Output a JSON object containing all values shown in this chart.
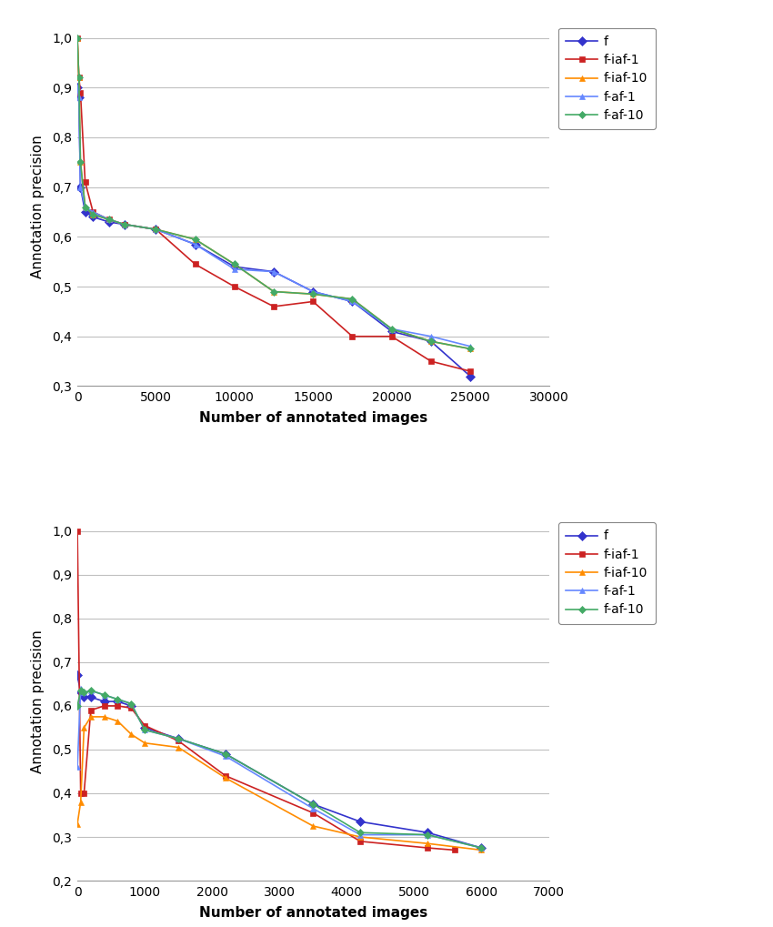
{
  "face": {
    "series": {
      "f": {
        "x": [
          1,
          100,
          200,
          500,
          1000,
          2000,
          3000,
          5000,
          7500,
          10000,
          12500,
          15000,
          17500,
          20000,
          22500,
          25000
        ],
        "y": [
          0.9,
          0.88,
          0.7,
          0.65,
          0.64,
          0.63,
          0.625,
          0.615,
          0.585,
          0.54,
          0.53,
          0.49,
          0.47,
          0.41,
          0.39,
          0.32
        ],
        "color": "#3333CC",
        "marker": "D",
        "markersize": 5,
        "label": "f"
      },
      "f-iaf-1": {
        "x": [
          1,
          100,
          200,
          500,
          1000,
          2000,
          3000,
          5000,
          7500,
          10000,
          12500,
          15000,
          17500,
          20000,
          22500,
          25000
        ],
        "y": [
          1.0,
          0.92,
          0.89,
          0.71,
          0.65,
          0.635,
          0.625,
          0.615,
          0.545,
          0.5,
          0.46,
          0.47,
          0.4,
          0.4,
          0.35,
          0.33
        ],
        "color": "#CC2222",
        "marker": "s",
        "markersize": 5,
        "label": "f-iaf-1"
      },
      "f-iaf-10": {
        "x": [
          1,
          100,
          200,
          500,
          1000,
          2000,
          3000,
          5000,
          7500,
          10000,
          12500,
          15000,
          17500,
          20000,
          22500,
          25000
        ],
        "y": [
          1.0,
          0.92,
          0.75,
          0.66,
          0.645,
          0.635,
          0.625,
          0.615,
          0.595,
          0.545,
          0.49,
          0.485,
          0.475,
          0.415,
          0.39,
          0.375
        ],
        "color": "#FF8C00",
        "marker": "^",
        "markersize": 5,
        "label": "f-iaf-10"
      },
      "f-af-1": {
        "x": [
          1,
          100,
          200,
          500,
          1000,
          2000,
          3000,
          5000,
          7500,
          10000,
          12500,
          15000,
          17500,
          20000,
          22500,
          25000
        ],
        "y": [
          0.9,
          0.88,
          0.7,
          0.66,
          0.65,
          0.635,
          0.625,
          0.615,
          0.585,
          0.535,
          0.53,
          0.49,
          0.47,
          0.415,
          0.4,
          0.38
        ],
        "color": "#6688FF",
        "marker": "^",
        "markersize": 5,
        "label": "f-af-1"
      },
      "f-af-10": {
        "x": [
          1,
          100,
          200,
          500,
          1000,
          2000,
          3000,
          5000,
          7500,
          10000,
          12500,
          15000,
          17500,
          20000,
          22500,
          25000
        ],
        "y": [
          1.0,
          0.92,
          0.75,
          0.66,
          0.645,
          0.635,
          0.625,
          0.615,
          0.595,
          0.545,
          0.49,
          0.485,
          0.475,
          0.415,
          0.39,
          0.375
        ],
        "color": "#44AA66",
        "marker": "D",
        "markersize": 4,
        "label": "f-af-10"
      }
    },
    "xlim": [
      0,
      30000
    ],
    "ylim": [
      0.3,
      1.02
    ],
    "xticks": [
      0,
      5000,
      10000,
      15000,
      20000,
      25000,
      30000
    ],
    "yticks": [
      0.3,
      0.4,
      0.5,
      0.6,
      0.7,
      0.8,
      0.9,
      1.0
    ],
    "ylabel": "Annotation precision",
    "xlabel": "Number of annotated images"
  },
  "logo": {
    "series": {
      "f": {
        "x": [
          1,
          50,
          100,
          200,
          400,
          600,
          800,
          1000,
          1500,
          2200,
          3500,
          4200,
          5200,
          6000
        ],
        "y": [
          0.67,
          0.63,
          0.62,
          0.62,
          0.61,
          0.61,
          0.6,
          0.55,
          0.525,
          0.49,
          0.375,
          0.335,
          0.31,
          0.275
        ],
        "color": "#3333CC",
        "marker": "D",
        "markersize": 5,
        "label": "f"
      },
      "f-iaf-1": {
        "x": [
          1,
          50,
          100,
          200,
          400,
          600,
          800,
          1000,
          1500,
          2200,
          3500,
          4200,
          5200,
          5600
        ],
        "y": [
          1.0,
          0.4,
          0.4,
          0.59,
          0.6,
          0.6,
          0.595,
          0.555,
          0.52,
          0.44,
          0.355,
          0.29,
          0.275,
          0.27
        ],
        "color": "#CC2222",
        "marker": "s",
        "markersize": 5,
        "label": "f-iaf-1"
      },
      "f-iaf-10": {
        "x": [
          1,
          50,
          100,
          200,
          400,
          600,
          800,
          1000,
          1500,
          2200,
          3500,
          4200,
          5200,
          6000
        ],
        "y": [
          0.33,
          0.38,
          0.55,
          0.575,
          0.575,
          0.565,
          0.535,
          0.515,
          0.505,
          0.435,
          0.325,
          0.3,
          0.285,
          0.27
        ],
        "color": "#FF8C00",
        "marker": "^",
        "markersize": 5,
        "label": "f-iaf-10"
      },
      "f-af-1": {
        "x": [
          1,
          50,
          100,
          200,
          400,
          600,
          800,
          1000,
          1500,
          2200,
          3500,
          4200,
          5200,
          6000
        ],
        "y": [
          0.46,
          0.64,
          0.63,
          0.635,
          0.625,
          0.615,
          0.605,
          0.545,
          0.525,
          0.485,
          0.365,
          0.305,
          0.305,
          0.275
        ],
        "color": "#6688FF",
        "marker": "^",
        "markersize": 5,
        "label": "f-af-1"
      },
      "f-af-10": {
        "x": [
          1,
          50,
          100,
          200,
          400,
          600,
          800,
          1000,
          1500,
          2200,
          3500,
          4200,
          5200,
          6000
        ],
        "y": [
          0.6,
          0.635,
          0.63,
          0.635,
          0.625,
          0.615,
          0.605,
          0.545,
          0.525,
          0.49,
          0.375,
          0.31,
          0.305,
          0.275
        ],
        "color": "#44AA66",
        "marker": "D",
        "markersize": 4,
        "label": "f-af-10"
      }
    },
    "xlim": [
      0,
      7000
    ],
    "ylim": [
      0.2,
      1.02
    ],
    "xticks": [
      0,
      1000,
      2000,
      3000,
      4000,
      5000,
      6000,
      7000
    ],
    "yticks": [
      0.2,
      0.3,
      0.4,
      0.5,
      0.6,
      0.7,
      0.8,
      0.9,
      1.0
    ],
    "ylabel": "Annotation precision",
    "xlabel": "Number of annotated images"
  },
  "series_order": [
    "f",
    "f-iaf-1",
    "f-iaf-10",
    "f-af-1",
    "f-af-10"
  ],
  "background_color": "#FFFFFF",
  "grid_color": "#C0C0C0",
  "fontsize_tick": 10,
  "fontsize_label": 11,
  "fontsize_legend": 10
}
